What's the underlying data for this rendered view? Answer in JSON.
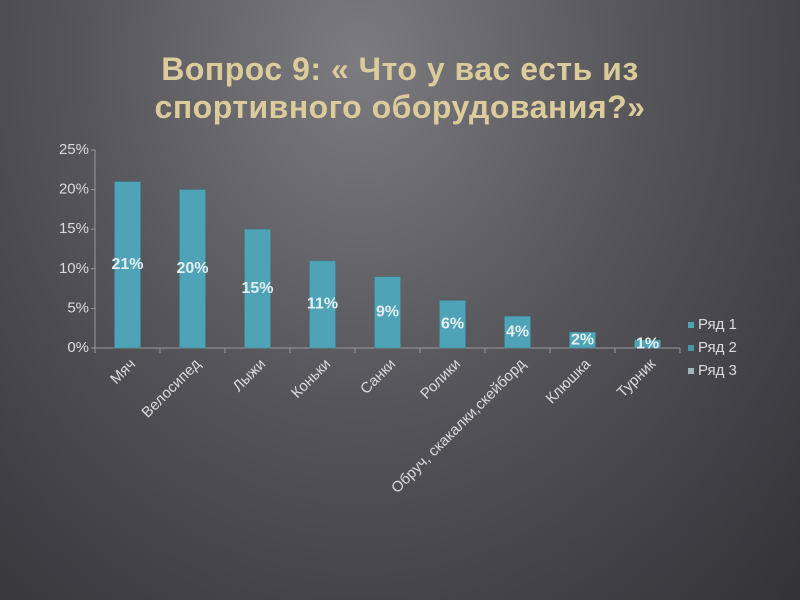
{
  "chart_data": {
    "type": "bar",
    "title": "Вопрос 9: « Что у вас есть из спортивного оборудования?»",
    "categories": [
      "Мяч",
      "Велосипед",
      "Лыжи",
      "Коньки",
      "Санки",
      "Ролики",
      "Обруч, скакалки,скейборд",
      "Клюшка",
      "Турник"
    ],
    "series": [
      {
        "name": "Ряд 1",
        "color": "#4fa3b6",
        "values": [
          21,
          20,
          15,
          11,
          9,
          6,
          4,
          2,
          1
        ],
        "value_labels": [
          "21%",
          "20%",
          "15%",
          "11%",
          "9%",
          "6%",
          "4%",
          "2%",
          "1%"
        ]
      },
      {
        "name": "Ряд 2",
        "color": "#4a94a8",
        "values": [
          null,
          null,
          null,
          null,
          null,
          null,
          null,
          null,
          null
        ]
      },
      {
        "name": "Ряд 3",
        "color": "#9fb4bb",
        "values": [
          null,
          null,
          null,
          null,
          null,
          null,
          null,
          null,
          null
        ]
      }
    ],
    "ylim": [
      0,
      25
    ],
    "yticks": [
      {
        "value": 0,
        "label": "0%"
      },
      {
        "value": 5,
        "label": "5%"
      },
      {
        "value": 10,
        "label": "10%"
      },
      {
        "value": 15,
        "label": "15%"
      },
      {
        "value": 20,
        "label": "20%"
      },
      {
        "value": 25,
        "label": "25%"
      }
    ],
    "legend": "right"
  }
}
